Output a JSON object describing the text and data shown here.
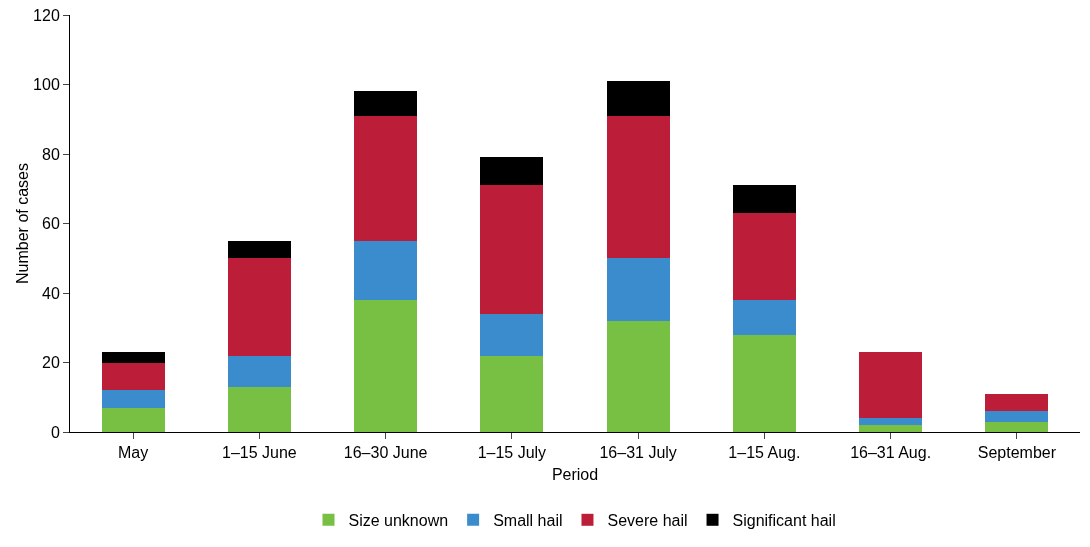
{
  "chart_data": {
    "type": "bar",
    "stacked": true,
    "xlabel": "Period",
    "ylabel": "Number of cases",
    "categories": [
      "May",
      "1–15 June",
      "16–30 June",
      "1–15 July",
      "16–31 July",
      "1–15 Aug.",
      "16–31 Aug.",
      "September"
    ],
    "series": [
      {
        "name": "Size unknown",
        "color": "#78c043",
        "values": [
          7,
          13,
          38,
          22,
          32,
          28,
          2,
          3
        ]
      },
      {
        "name": "Small hail",
        "color": "#3a8ccc",
        "values": [
          5,
          9,
          17,
          12,
          18,
          10,
          2,
          3
        ]
      },
      {
        "name": "Severe hail",
        "color": "#bc1e3a",
        "values": [
          8,
          28,
          36,
          37,
          41,
          25,
          19,
          5
        ]
      },
      {
        "name": "Significant hail",
        "color": "#000000",
        "values": [
          3,
          5,
          7,
          8,
          10,
          8,
          0,
          0
        ]
      }
    ],
    "ylim": [
      0,
      120
    ],
    "yticks": [
      0,
      20,
      40,
      60,
      80,
      100,
      120
    ],
    "grid": false,
    "legend": "bottom"
  }
}
